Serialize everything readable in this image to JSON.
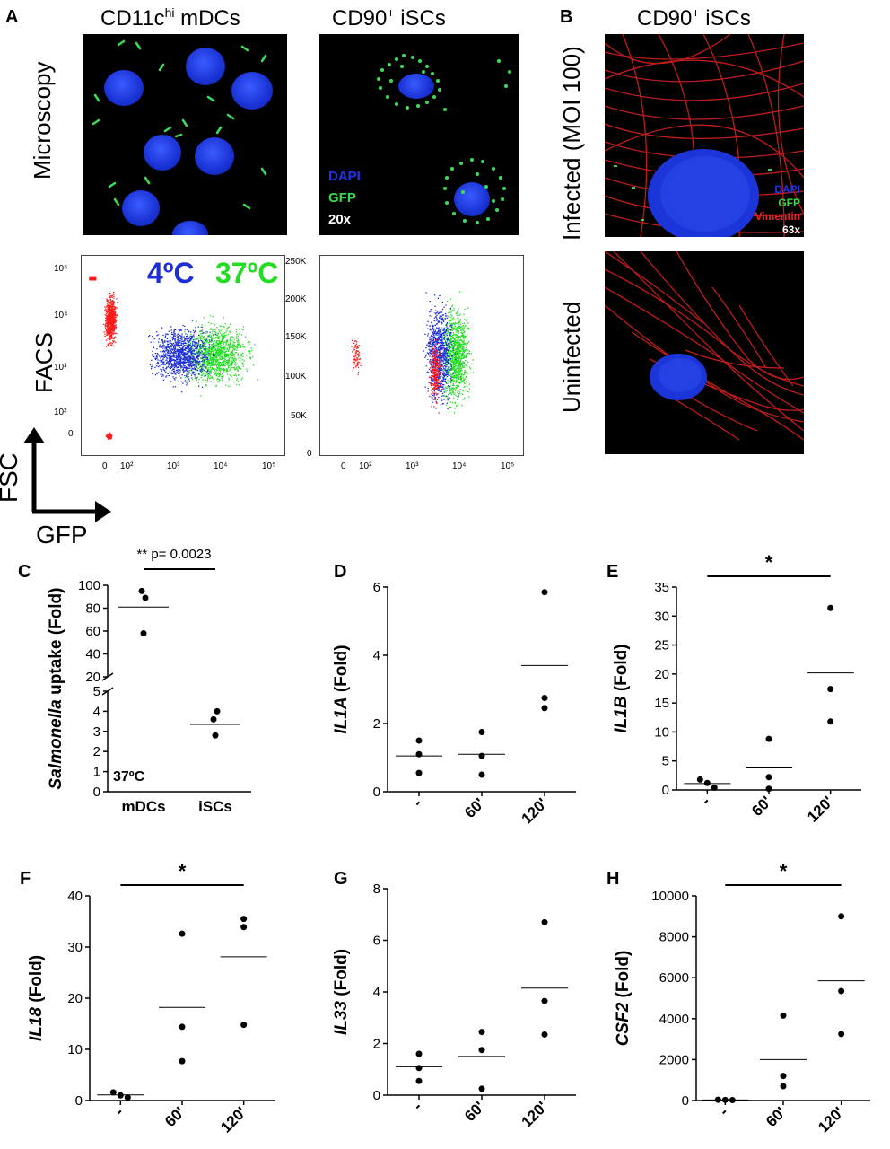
{
  "panels": {
    "a": "A",
    "b": "B",
    "c": "C",
    "d": "D",
    "e": "E",
    "f": "F",
    "g": "G",
    "h": "H"
  },
  "top": {
    "col1_title_main": "CD11c",
    "col1_title_sup": "hi",
    "col1_title_rest": " mDCs",
    "col2_title_main": "CD90",
    "col2_title_sup": "+",
    "col2_title_rest": " iSCs",
    "col3_title_main": "CD90",
    "col3_title_sup": "+",
    "col3_title_rest": " iSCs",
    "row_microscopy": "Microscopy",
    "row_facs": "FACS",
    "row_infected": "Infected (MOI 100)",
    "row_uninfected": "Uninfected",
    "legend_dapi": "DAPI",
    "legend_gfp": "GFP",
    "legend_mag": "20x",
    "legend_b_dapi": "DAPI",
    "legend_b_gfp": "GFP",
    "legend_b_vim": "Vimentin",
    "legend_b_mag": "63x",
    "facs_minus": "-",
    "facs_4c": "4ºC",
    "facs_37c": "37ºC",
    "axis_fsc": "FSC",
    "axis_gfp": "GFP",
    "colors": {
      "minus": "#ff1a1a",
      "c4": "#1d2ed6",
      "c37": "#22dd22"
    }
  },
  "facs1": {
    "y_ticks": [
      "10⁵",
      "10⁴",
      "10³",
      "10²",
      "0"
    ],
    "x_ticks": [
      "0",
      "10²",
      "10³",
      "10⁴",
      "10⁵"
    ]
  },
  "facs2": {
    "y_ticks": [
      "250K",
      "200K",
      "150K",
      "100K",
      "50K",
      "0"
    ],
    "x_ticks": [
      "0",
      "10²",
      "10³",
      "10⁴",
      "10⁵"
    ]
  },
  "chart_data": [
    {
      "panel": "C",
      "type": "scatter",
      "ylabel_italic": "Salmonella",
      "ylabel_rest": " uptake (Fold)",
      "categories": [
        "mDCs",
        "iSCs"
      ],
      "points": [
        [
          95,
          89,
          58
        ],
        [
          4.0,
          3.6,
          2.8
        ]
      ],
      "means": [
        81,
        3.35
      ],
      "y_upper_ticks": [
        "20",
        "40",
        "60",
        "80",
        "100"
      ],
      "y_lower_ticks": [
        "0",
        "1",
        "2",
        "3",
        "4",
        "5"
      ],
      "annotation": "37ºC",
      "significance": "** p= 0.0023"
    },
    {
      "panel": "D",
      "type": "scatter",
      "ylabel_italic": "IL1A",
      "ylabel_rest": " (Fold)",
      "categories": [
        "-",
        "60'",
        "120'"
      ],
      "ylim": [
        0,
        6
      ],
      "y_ticks": [
        "0",
        "2",
        "4",
        "6"
      ],
      "points": [
        [
          1.5,
          1.1,
          0.55
        ],
        [
          1.75,
          1.05,
          0.5
        ],
        [
          5.85,
          2.75,
          2.45
        ]
      ],
      "means": [
        1.05,
        1.1,
        3.7
      ],
      "significance": ""
    },
    {
      "panel": "E",
      "type": "scatter",
      "ylabel_italic": "IL1B",
      "ylabel_rest": " (Fold)",
      "categories": [
        "-",
        "60'",
        "120'"
      ],
      "ylim": [
        0,
        35
      ],
      "y_ticks": [
        "0",
        "5",
        "10",
        "15",
        "20",
        "25",
        "30",
        "35"
      ],
      "points": [
        [
          1.8,
          1.2,
          0.4
        ],
        [
          8.8,
          2.2,
          0.2
        ],
        [
          31.4,
          17.4,
          11.8
        ]
      ],
      "means": [
        1.1,
        3.8,
        20.2
      ],
      "significance": "*"
    },
    {
      "panel": "F",
      "type": "scatter",
      "ylabel_italic": "IL18",
      "ylabel_rest": " (Fold)",
      "categories": [
        "-",
        "60'",
        "120'"
      ],
      "ylim": [
        0,
        40
      ],
      "y_ticks": [
        "0",
        "10",
        "20",
        "30",
        "40"
      ],
      "points": [
        [
          1.6,
          1.0,
          0.6
        ],
        [
          32.6,
          14.4,
          7.7
        ],
        [
          35.5,
          33.9,
          14.8
        ]
      ],
      "means": [
        1.1,
        18.2,
        28.1
      ],
      "significance": "*"
    },
    {
      "panel": "G",
      "type": "scatter",
      "ylabel_italic": "IL33",
      "ylabel_rest": " (Fold)",
      "categories": [
        "-",
        "60'",
        "120'"
      ],
      "ylim": [
        0,
        8
      ],
      "y_ticks": [
        "0",
        "2",
        "4",
        "6",
        "8"
      ],
      "points": [
        [
          1.6,
          1.05,
          0.55
        ],
        [
          2.45,
          1.75,
          0.25
        ],
        [
          6.7,
          3.65,
          2.35
        ]
      ],
      "means": [
        1.1,
        1.5,
        4.15
      ],
      "significance": ""
    },
    {
      "panel": "H",
      "type": "scatter",
      "ylabel_italic": "CSF2",
      "ylabel_rest": " (Fold)",
      "categories": [
        "-",
        "60'",
        "120'"
      ],
      "ylim": [
        0,
        10000
      ],
      "y_ticks": [
        "0",
        "2000",
        "4000",
        "6000",
        "8000",
        "10000"
      ],
      "points": [
        [
          40,
          30,
          20
        ],
        [
          4150,
          1200,
          700
        ],
        [
          9000,
          5350,
          3250
        ]
      ],
      "means": [
        30,
        2000,
        5850
      ],
      "significance": "*"
    }
  ]
}
